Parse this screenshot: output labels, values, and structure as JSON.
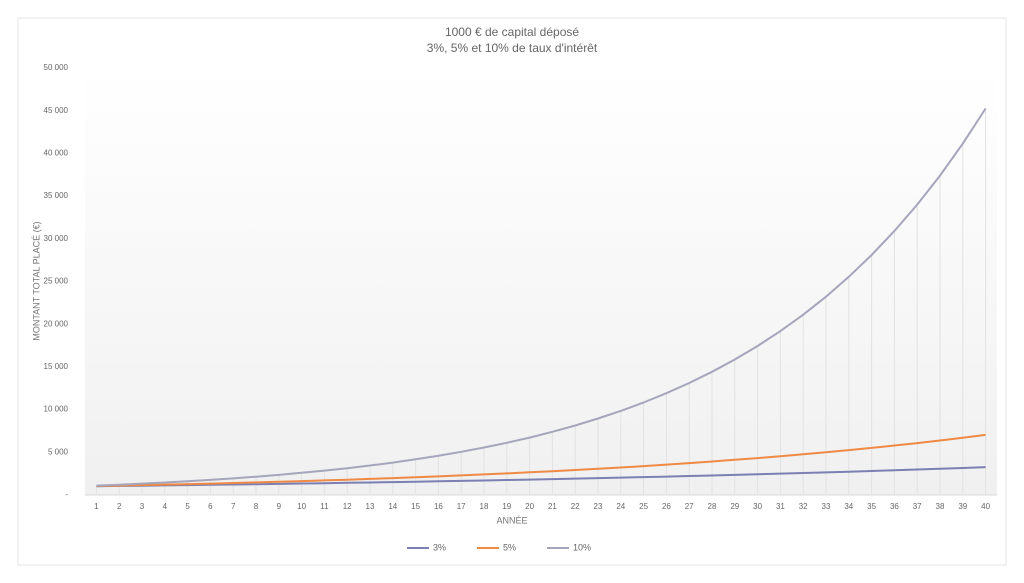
{
  "chart_data": {
    "type": "line",
    "title": "1000 € de capital déposé",
    "subtitle": "3%, 5% et 10% de taux d'intérêt",
    "x_label": "ANNÉE",
    "y_label": "MONTANT  TOTAL  PLACÉ (€)",
    "categories": [
      "1",
      "2",
      "3",
      "4",
      "5",
      "6",
      "7",
      "8",
      "9",
      "10",
      "11",
      "12",
      "13",
      "14",
      "15",
      "16",
      "17",
      "18",
      "19",
      "20",
      "21",
      "22",
      "23",
      "24",
      "25",
      "26",
      "27",
      "28",
      "29",
      "30",
      "31",
      "32",
      "33",
      "34",
      "35",
      "36",
      "37",
      "38",
      "39",
      "40"
    ],
    "series": [
      {
        "name": "3%",
        "color": "#7b7fb2",
        "values": [
          1030,
          1061,
          1093,
          1126,
          1159,
          1194,
          1230,
          1267,
          1305,
          1344,
          1384,
          1426,
          1469,
          1513,
          1558,
          1605,
          1653,
          1702,
          1754,
          1806,
          1860,
          1916,
          1974,
          2033,
          2094,
          2157,
          2221,
          2288,
          2357,
          2427,
          2500,
          2575,
          2652,
          2732,
          2814,
          2898,
          2985,
          3075,
          3167,
          3262
        ]
      },
      {
        "name": "5%",
        "color": "#ee8a45",
        "values": [
          1050,
          1103,
          1158,
          1216,
          1276,
          1340,
          1407,
          1477,
          1551,
          1629,
          1710,
          1796,
          1886,
          1980,
          2079,
          2183,
          2292,
          2407,
          2527,
          2653,
          2786,
          2925,
          3072,
          3225,
          3386,
          3556,
          3733,
          3920,
          4116,
          4322,
          4538,
          4765,
          5003,
          5253,
          5516,
          5792,
          6081,
          6385,
          6705,
          7040
        ]
      },
      {
        "name": "10%",
        "color": "#a5a5bc",
        "values": [
          1100,
          1210,
          1331,
          1464,
          1611,
          1772,
          1949,
          2144,
          2358,
          2594,
          2853,
          3138,
          3452,
          3797,
          4177,
          4595,
          5054,
          5560,
          6116,
          6727,
          7400,
          8140,
          8954,
          9850,
          10835,
          11918,
          13110,
          14421,
          15863,
          17449,
          19194,
          21114,
          23225,
          25548,
          28102,
          30913,
          34004,
          37404,
          41145,
          45259
        ]
      }
    ],
    "ylim": [
      0,
      50000
    ],
    "yticks": [
      {
        "value": 0,
        "label": "-"
      },
      {
        "value": 5000,
        "label": "5 000"
      },
      {
        "value": 10000,
        "label": "10 000"
      },
      {
        "value": 15000,
        "label": "15 000"
      },
      {
        "value": 20000,
        "label": "20 000"
      },
      {
        "value": 25000,
        "label": "25 000"
      },
      {
        "value": 30000,
        "label": "30 000"
      },
      {
        "value": 35000,
        "label": "35 000"
      },
      {
        "value": 40000,
        "label": "40 000"
      },
      {
        "value": 45000,
        "label": "45 000"
      },
      {
        "value": 50000,
        "label": "50 000"
      }
    ],
    "grid": false,
    "drop_lines": true,
    "legend": "bottom"
  }
}
